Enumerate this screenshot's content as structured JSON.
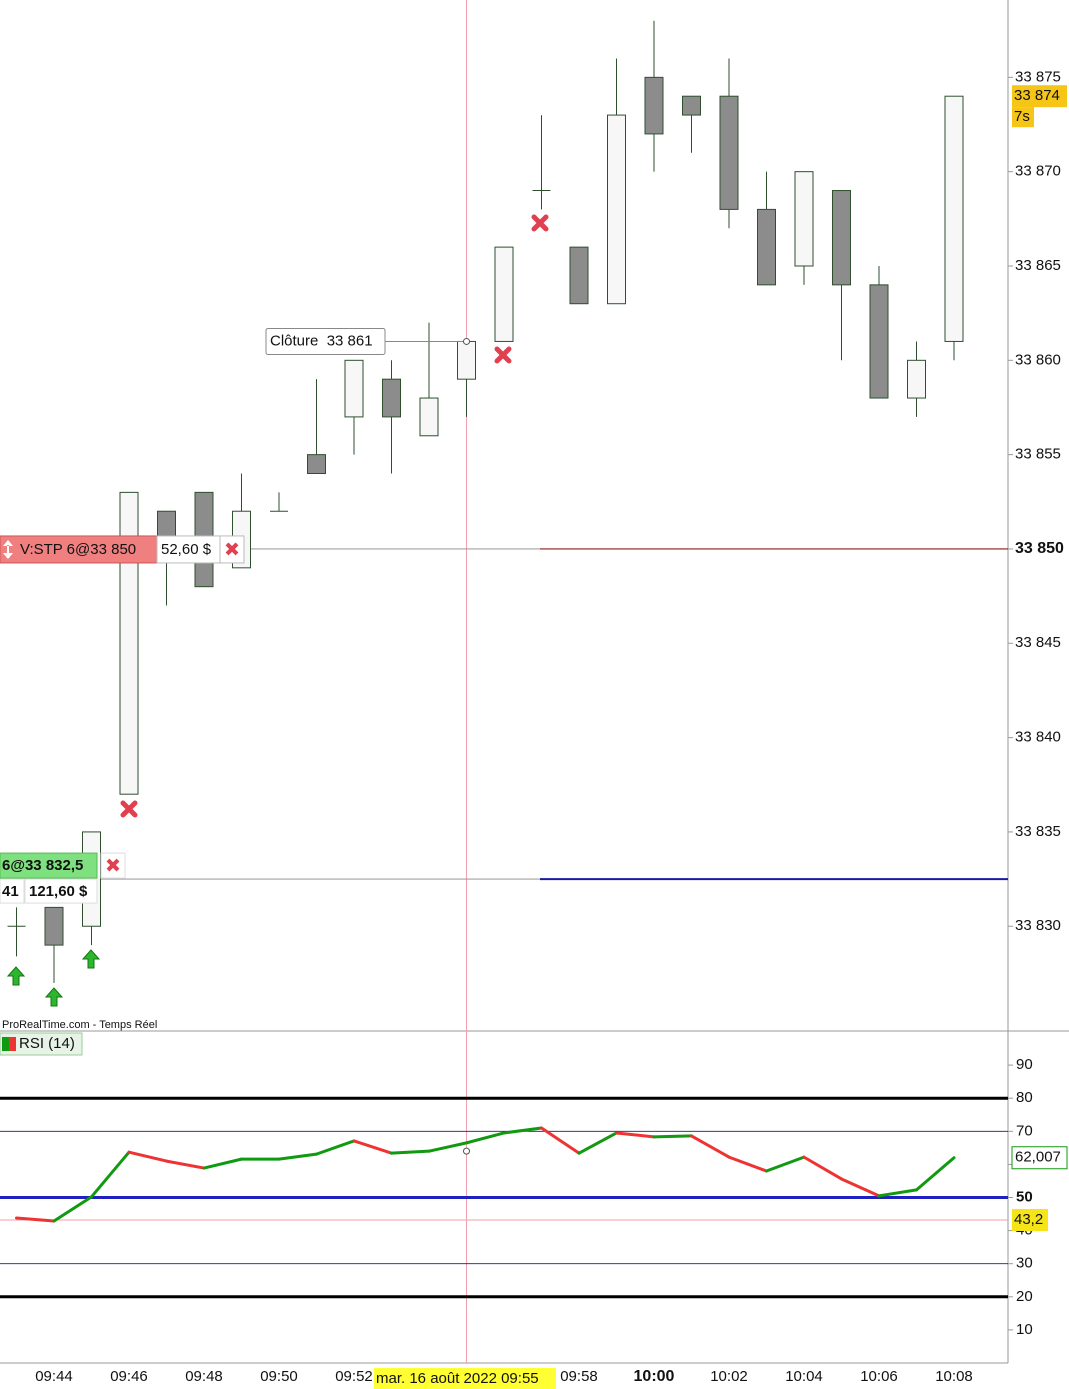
{
  "chart_data": [
    {
      "type": "candlestick",
      "categories": [
        null,
        "09:44",
        null,
        "09:46",
        null,
        "09:48",
        null,
        "09:50",
        null,
        "09:52",
        null,
        null,
        null,
        null,
        null,
        "09:58",
        null,
        "10:00",
        null,
        "10:02",
        null,
        "10:04",
        null,
        "10:06",
        null,
        "10:08"
      ],
      "open": [
        33830,
        33831,
        33830,
        33837,
        33852,
        33853,
        33849,
        33852,
        33855,
        33857,
        33859,
        33856,
        33859,
        33861,
        33869,
        33866,
        33863,
        33875,
        33874,
        33874,
        33868,
        33865,
        33869,
        33864,
        33858,
        33861
      ],
      "high": [
        33831,
        33831,
        33835,
        33853,
        33852,
        33853,
        33854,
        33853,
        33859,
        33860,
        33860,
        33862,
        33861,
        33866,
        33873,
        33866,
        33876,
        33878,
        33874,
        33876,
        33870,
        33870,
        33869,
        33865,
        33861,
        33874
      ],
      "low": [
        33828.4,
        33827,
        33829,
        33837,
        33847,
        33848,
        33849,
        33852,
        33854,
        33855,
        33854,
        33856,
        33857,
        33861,
        33868,
        33863,
        33863,
        33870,
        33871,
        33867,
        33864,
        33864,
        33860,
        33858,
        33857,
        33860
      ],
      "close": [
        33830,
        33829,
        33835,
        33853,
        33850.5,
        33848,
        33852,
        33852,
        33854,
        33860,
        33857,
        33858,
        33861,
        33866,
        33869,
        33863,
        33873,
        33872,
        33873,
        33868,
        33864,
        33870,
        33864,
        33858,
        33860,
        33874
      ],
      "ylim": [
        33824.5,
        33879.1
      ],
      "yticks": [
        {
          "value": 33830,
          "label": "33 830"
        },
        {
          "value": 33835,
          "label": "33 835"
        },
        {
          "value": 33840,
          "label": "33 840"
        },
        {
          "value": 33845,
          "label": "33 845"
        },
        {
          "value": 33850,
          "label": "33 850"
        },
        {
          "value": 33855,
          "label": "33 855"
        },
        {
          "value": 33860,
          "label": "33 860"
        },
        {
          "value": 33865,
          "label": "33 865"
        },
        {
          "value": 33870,
          "label": "33 870"
        },
        {
          "value": 33875,
          "label": "33 875"
        }
      ],
      "source": "ProRealTime.com - Temps Réel",
      "orders": [
        {
          "label": "V:STP 6@33 850",
          "value": 33850,
          "pnl": "52,60 $",
          "color": "#f08080"
        },
        {
          "label": "6@33 832,5",
          "value": 33832.5,
          "qty": "41",
          "pnl": "121,60 $",
          "color": "#7ee07e"
        }
      ],
      "crosshair": {
        "label": "Clôture  33 861",
        "value": 33861,
        "x_label": "mar. 16 août 2022 09:55"
      },
      "last_price": {
        "value": 33874,
        "label": "33 874",
        "timer": "7s"
      }
    },
    {
      "type": "line",
      "name": "RSI (14)",
      "values": [
        43.8,
        42.9,
        50.2,
        63.7,
        61.0,
        58.9,
        61.6,
        61.6,
        63.1,
        67.1,
        63.4,
        64.0,
        66.5,
        69.5,
        71.0,
        63.4,
        69.5,
        68.3,
        68.6,
        62.2,
        58.0,
        62.2,
        55.6,
        50.5,
        52.3,
        62.007
      ],
      "last_value_label": "62,007",
      "ylim": [
        0,
        100
      ],
      "yticks": [
        10,
        20,
        30,
        40,
        50,
        60,
        70,
        80,
        90
      ],
      "levels": [
        {
          "value": 80,
          "color": "#000000",
          "style": "thick"
        },
        {
          "value": 70,
          "color": "#1a1a6a",
          "style": "thin"
        },
        {
          "value": 50,
          "color": "#2020c0",
          "style": "thick"
        },
        {
          "value": 30,
          "color": "#1a1a8a",
          "style": "thin"
        },
        {
          "value": 20,
          "color": "#000000",
          "style": "thick"
        }
      ],
      "marker": {
        "value": 43.2,
        "label": "43,2",
        "color": "#f0a0a8"
      },
      "up_color": "#119911",
      "down_color": "#ee3333"
    }
  ]
}
